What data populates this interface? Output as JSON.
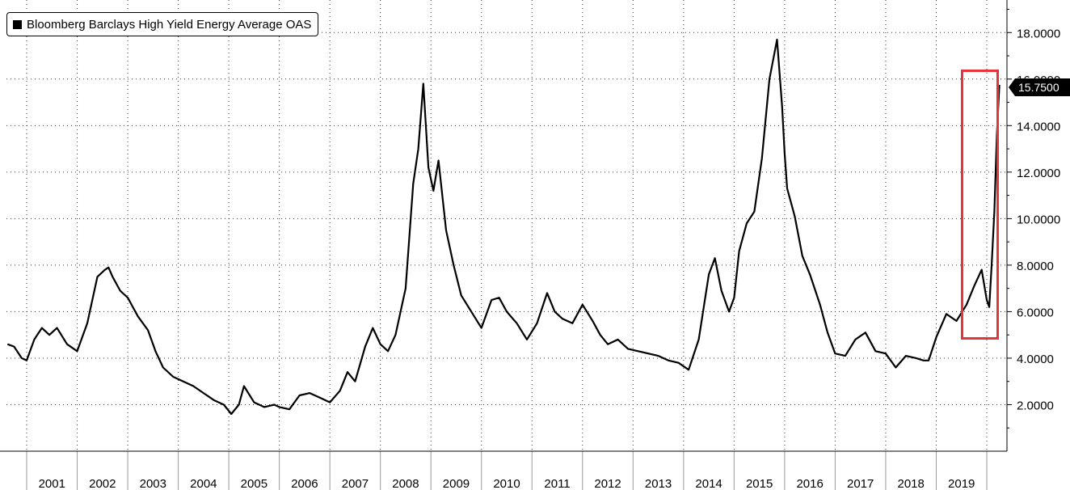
{
  "legend": {
    "label": "Bloomberg Barclays High Yield Energy Average OAS",
    "swatch_color": "#000000"
  },
  "last_value_label": "15.7500",
  "highlight_color": "#e8333b",
  "chart_data": {
    "type": "line",
    "xlabel": "",
    "ylabel": "",
    "x_tick_labels": [
      "2001",
      "2002",
      "2003",
      "2004",
      "2005",
      "2006",
      "2007",
      "2008",
      "2009",
      "2010",
      "2011",
      "2012",
      "2013",
      "2014",
      "2015",
      "2016",
      "2017",
      "2018",
      "2019"
    ],
    "y_tick_labels": [
      "2.0000",
      "4.0000",
      "6.0000",
      "8.0000",
      "10.0000",
      "12.0000",
      "14.0000",
      "16.0000",
      "18.0000"
    ],
    "ylim": [
      0,
      19.4
    ],
    "xlim": [
      2000.6,
      2020.4
    ],
    "grid": true,
    "y_axis_side": "right",
    "legend_position": "top-left",
    "series": [
      {
        "name": "Bloomberg Barclays High Yield Energy Average OAS",
        "color": "#000000",
        "x": [
          2000.62,
          2000.75,
          2000.9,
          2001.0,
          2001.15,
          2001.3,
          2001.45,
          2001.6,
          2001.8,
          2002.0,
          2002.2,
          2002.4,
          2002.55,
          2002.62,
          2002.7,
          2002.85,
          2003.0,
          2003.2,
          2003.4,
          2003.55,
          2003.7,
          2003.9,
          2004.1,
          2004.3,
          2004.5,
          2004.7,
          2004.9,
          2005.05,
          2005.2,
          2005.3,
          2005.5,
          2005.7,
          2005.9,
          2006.0,
          2006.2,
          2006.4,
          2006.6,
          2006.8,
          2007.0,
          2007.2,
          2007.35,
          2007.5,
          2007.7,
          2007.85,
          2008.0,
          2008.15,
          2008.3,
          2008.5,
          2008.65,
          2008.75,
          2008.85,
          2008.95,
          2009.05,
          2009.15,
          2009.3,
          2009.45,
          2009.6,
          2009.8,
          2010.0,
          2010.2,
          2010.35,
          2010.5,
          2010.7,
          2010.9,
          2011.1,
          2011.3,
          2011.45,
          2011.6,
          2011.8,
          2012.0,
          2012.2,
          2012.35,
          2012.5,
          2012.7,
          2012.9,
          2013.1,
          2013.3,
          2013.5,
          2013.7,
          2013.9,
          2014.1,
          2014.3,
          2014.5,
          2014.62,
          2014.75,
          2014.9,
          2015.0,
          2015.1,
          2015.25,
          2015.4,
          2015.55,
          2015.7,
          2015.85,
          2015.95,
          2016.0,
          2016.05,
          2016.2,
          2016.35,
          2016.5,
          2016.7,
          2016.85,
          2017.0,
          2017.2,
          2017.4,
          2017.6,
          2017.8,
          2018.0,
          2018.2,
          2018.4,
          2018.6,
          2018.75,
          2018.85,
          2019.0,
          2019.2,
          2019.4,
          2019.6,
          2019.75,
          2019.9,
          2020.0,
          2020.05,
          2020.1,
          2020.15,
          2020.2,
          2020.25
        ],
        "y": [
          4.6,
          4.5,
          4.0,
          3.9,
          4.8,
          5.3,
          5.0,
          5.3,
          4.6,
          4.3,
          5.5,
          7.5,
          7.8,
          7.9,
          7.5,
          6.9,
          6.6,
          5.8,
          5.2,
          4.3,
          3.6,
          3.2,
          3.0,
          2.8,
          2.5,
          2.2,
          2.0,
          1.6,
          2.0,
          2.8,
          2.1,
          1.9,
          2.0,
          1.9,
          1.8,
          2.4,
          2.5,
          2.3,
          2.1,
          2.6,
          3.4,
          3.0,
          4.5,
          5.3,
          4.6,
          4.3,
          5.0,
          7.0,
          11.5,
          13.0,
          15.8,
          12.2,
          11.2,
          12.5,
          9.5,
          8.0,
          6.7,
          6.0,
          5.3,
          6.5,
          6.6,
          6.0,
          5.5,
          4.8,
          5.5,
          6.8,
          6.0,
          5.7,
          5.5,
          6.3,
          5.6,
          5.0,
          4.6,
          4.8,
          4.4,
          4.3,
          4.2,
          4.1,
          3.9,
          3.8,
          3.5,
          4.8,
          7.6,
          8.3,
          6.9,
          6.0,
          6.6,
          8.6,
          9.8,
          10.3,
          12.6,
          16.0,
          17.7,
          14.8,
          12.8,
          11.3,
          10.1,
          8.4,
          7.6,
          6.3,
          5.1,
          4.2,
          4.1,
          4.8,
          5.1,
          4.3,
          4.2,
          3.6,
          4.1,
          4.0,
          3.9,
          3.9,
          4.9,
          5.9,
          5.6,
          6.3,
          7.1,
          7.8,
          6.5,
          6.2,
          8.1,
          10.3,
          13.6,
          15.75
        ]
      }
    ]
  }
}
